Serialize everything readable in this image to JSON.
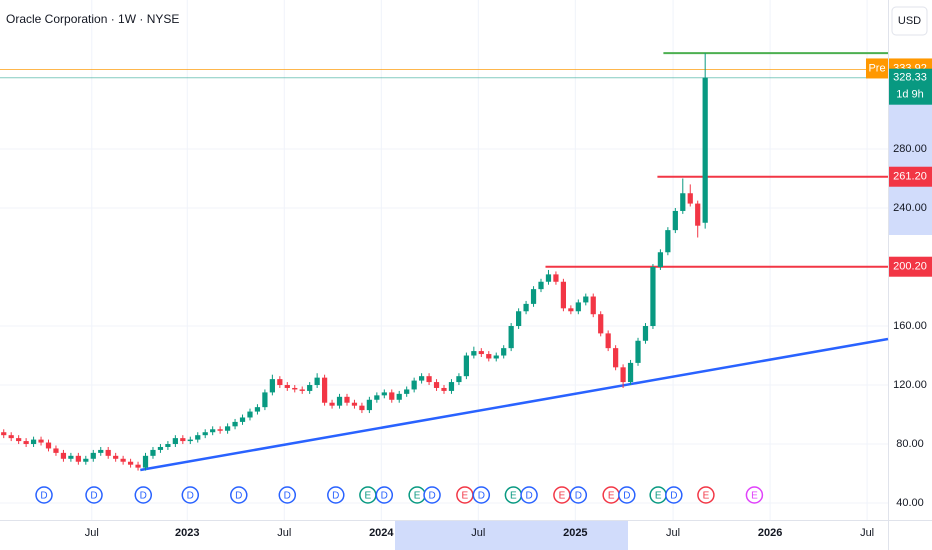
{
  "chart_data": {
    "type": "candlestick",
    "title": "Oracle Corporation · 1W · NYSE",
    "currency": "USD",
    "up_color": "#089981",
    "down_color": "#f23645",
    "xlim": [
      -0.5,
      118.5
    ],
    "xticks": [
      {
        "value": 11.8,
        "label": "Jul"
      },
      {
        "value": 24.6,
        "label": "2023"
      },
      {
        "value": 37.6,
        "label": "Jul"
      },
      {
        "value": 50.6,
        "label": "2024"
      },
      {
        "value": 63.6,
        "label": "Jul"
      },
      {
        "value": 76.6,
        "label": "2025"
      },
      {
        "value": 89.7,
        "label": "Jul"
      },
      {
        "value": 102.7,
        "label": "2026"
      },
      {
        "value": 115.7,
        "label": "Jul"
      }
    ],
    "ylim": [
      28.5,
      381
    ],
    "yticks": [
      {
        "value": 40,
        "label": "40.00"
      },
      {
        "value": 80,
        "label": "80.00"
      },
      {
        "value": 120,
        "label": "120.00"
      },
      {
        "value": 160,
        "label": "160.00"
      },
      {
        "value": 240,
        "label": "240.00"
      },
      {
        "value": 280,
        "label": "280.00"
      }
    ],
    "grid": true,
    "candles": [
      [
        88,
        90,
        84,
        86
      ],
      [
        86,
        88,
        82,
        84
      ],
      [
        84,
        86,
        80,
        82
      ],
      [
        82,
        84,
        78,
        80
      ],
      [
        80,
        85,
        78,
        83
      ],
      [
        83,
        85,
        79,
        81
      ],
      [
        81,
        83,
        75,
        77
      ],
      [
        77,
        79,
        72,
        74
      ],
      [
        74,
        76,
        68,
        70
      ],
      [
        70,
        74,
        68,
        72
      ],
      [
        72,
        74,
        66,
        68
      ],
      [
        68,
        72,
        66,
        70
      ],
      [
        70,
        76,
        68,
        74
      ],
      [
        74,
        78,
        72,
        76
      ],
      [
        76,
        78,
        70,
        72
      ],
      [
        72,
        74,
        68,
        70
      ],
      [
        70,
        72,
        66,
        68
      ],
      [
        68,
        70,
        64,
        66
      ],
      [
        66,
        68,
        62,
        64
      ],
      [
        64,
        74,
        62,
        72
      ],
      [
        72,
        78,
        70,
        76
      ],
      [
        76,
        80,
        74,
        78
      ],
      [
        78,
        82,
        76,
        80
      ],
      [
        80,
        86,
        78,
        84
      ],
      [
        84,
        86,
        80,
        82
      ],
      [
        82,
        85,
        80,
        83
      ],
      [
        83,
        88,
        81,
        86
      ],
      [
        86,
        90,
        84,
        88
      ],
      [
        88,
        92,
        86,
        90
      ],
      [
        90,
        92,
        87,
        89
      ],
      [
        89,
        94,
        87,
        92
      ],
      [
        92,
        97,
        90,
        95
      ],
      [
        95,
        100,
        93,
        98
      ],
      [
        98,
        104,
        96,
        102
      ],
      [
        102,
        107,
        100,
        105
      ],
      [
        105,
        117,
        103,
        115
      ],
      [
        115,
        127,
        113,
        124
      ],
      [
        124,
        126,
        118,
        120
      ],
      [
        120,
        122,
        116,
        118
      ],
      [
        118,
        120,
        115,
        117
      ],
      [
        117,
        119,
        114,
        116
      ],
      [
        116,
        122,
        114,
        120
      ],
      [
        120,
        128,
        118,
        125
      ],
      [
        125,
        127,
        106,
        108
      ],
      [
        108,
        110,
        104,
        106
      ],
      [
        106,
        114,
        104,
        112
      ],
      [
        112,
        114,
        106,
        108
      ],
      [
        108,
        110,
        104,
        106
      ],
      [
        106,
        108,
        101,
        103
      ],
      [
        103,
        112,
        101,
        110
      ],
      [
        110,
        115,
        108,
        113
      ],
      [
        113,
        117,
        111,
        115
      ],
      [
        115,
        117,
        108,
        110
      ],
      [
        110,
        116,
        108,
        114
      ],
      [
        114,
        119,
        112,
        117
      ],
      [
        117,
        125,
        115,
        123
      ],
      [
        123,
        128,
        121,
        126
      ],
      [
        126,
        128,
        120,
        122
      ],
      [
        122,
        124,
        116,
        118
      ],
      [
        118,
        120,
        114,
        116
      ],
      [
        116,
        124,
        114,
        122
      ],
      [
        122,
        128,
        120,
        126
      ],
      [
        126,
        142,
        124,
        140
      ],
      [
        140,
        146,
        138,
        143
      ],
      [
        143,
        145,
        139,
        141
      ],
      [
        141,
        143,
        136,
        138
      ],
      [
        138,
        142,
        136,
        140
      ],
      [
        140,
        147,
        138,
        145
      ],
      [
        145,
        162,
        143,
        160
      ],
      [
        160,
        172,
        158,
        170
      ],
      [
        170,
        177,
        168,
        175
      ],
      [
        175,
        187,
        173,
        185
      ],
      [
        185,
        192,
        183,
        190
      ],
      [
        190,
        198,
        188,
        195
      ],
      [
        195,
        197,
        188,
        190
      ],
      [
        190,
        192,
        170,
        172
      ],
      [
        172,
        174,
        168,
        170
      ],
      [
        170,
        178,
        168,
        176
      ],
      [
        176,
        182,
        174,
        180
      ],
      [
        180,
        182,
        166,
        168
      ],
      [
        168,
        170,
        153,
        155
      ],
      [
        155,
        157,
        143,
        145
      ],
      [
        145,
        147,
        130,
        132
      ],
      [
        132,
        134,
        118,
        122
      ],
      [
        122,
        137,
        120,
        135
      ],
      [
        135,
        152,
        133,
        150
      ],
      [
        150,
        162,
        148,
        160
      ],
      [
        160,
        202,
        158,
        200
      ],
      [
        200,
        212,
        198,
        210
      ],
      [
        210,
        227,
        208,
        225
      ],
      [
        225,
        240,
        223,
        238
      ],
      [
        238,
        260,
        236,
        250
      ],
      [
        250,
        256,
        241,
        243
      ],
      [
        243,
        245,
        220,
        228
      ],
      [
        230,
        345,
        226,
        328.33
      ]
    ],
    "levels": [
      {
        "value": 345,
        "start": 88.4,
        "color": "#4caf50"
      },
      {
        "value": 261.2,
        "start": 87.6,
        "color": "#f23645",
        "label": "261.20"
      },
      {
        "value": 200.2,
        "start": 72.6,
        "color": "#f23645",
        "label": "200.20"
      }
    ],
    "trendline": {
      "x": [
        18.3,
        118.5
      ],
      "y": [
        62.4,
        151.2
      ],
      "color": "#2962ff"
    },
    "premarket": {
      "badge": "Pre",
      "value": 333.92,
      "color": "#ff9800"
    },
    "last": {
      "value": 328.33,
      "countdown": "1d 9h",
      "color": "#089981"
    },
    "events": [
      {
        "label": "D",
        "x": 5.4,
        "color": "#2962ff"
      },
      {
        "label": "D",
        "x": 12.1,
        "color": "#2962ff"
      },
      {
        "label": "D",
        "x": 18.7,
        "color": "#2962ff"
      },
      {
        "label": "D",
        "x": 25,
        "color": "#2962ff"
      },
      {
        "label": "D",
        "x": 31.5,
        "color": "#2962ff"
      },
      {
        "label": "D",
        "x": 38,
        "color": "#2962ff"
      },
      {
        "label": "D",
        "x": 44.5,
        "color": "#2962ff"
      },
      {
        "label": "E",
        "x": 48.8,
        "color": "#089981"
      },
      {
        "label": "D",
        "x": 51,
        "color": "#2962ff"
      },
      {
        "label": "E",
        "x": 55.4,
        "color": "#089981"
      },
      {
        "label": "D",
        "x": 57.4,
        "color": "#2962ff"
      },
      {
        "label": "E",
        "x": 61.8,
        "color": "#f23645"
      },
      {
        "label": "D",
        "x": 64,
        "color": "#2962ff"
      },
      {
        "label": "E",
        "x": 68.3,
        "color": "#089981"
      },
      {
        "label": "D",
        "x": 70.4,
        "color": "#2962ff"
      },
      {
        "label": "E",
        "x": 74.8,
        "color": "#f23645"
      },
      {
        "label": "D",
        "x": 77,
        "color": "#2962ff"
      },
      {
        "label": "E",
        "x": 81.4,
        "color": "#f23645"
      },
      {
        "label": "D",
        "x": 83.5,
        "color": "#2962ff"
      },
      {
        "label": "E",
        "x": 87.7,
        "color": "#089981"
      },
      {
        "label": "D",
        "x": 89.8,
        "color": "#2962ff"
      },
      {
        "label": "E",
        "x": 94.1,
        "color": "#f23645"
      },
      {
        "label": "E",
        "x": 100.6,
        "color": "#e040fb"
      }
    ]
  }
}
